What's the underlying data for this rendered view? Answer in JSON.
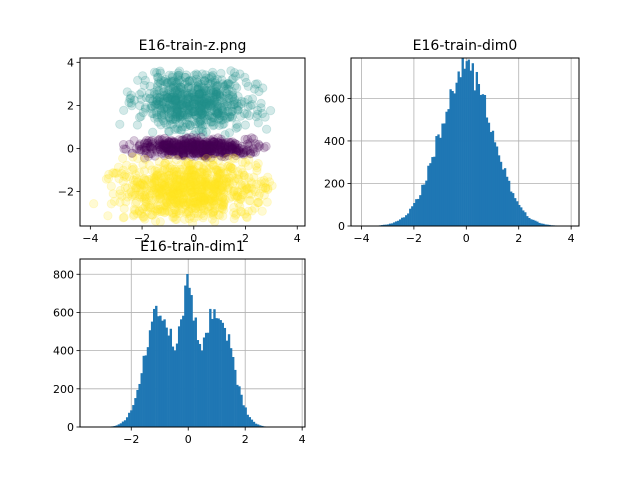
{
  "chart_data": [
    {
      "type": "scatter",
      "title": "E16-train-z.png",
      "xlim": [
        -4.4,
        4.3
      ],
      "ylim": [
        -3.6,
        4.2
      ],
      "xticks": [
        -4,
        -2,
        0,
        2,
        4
      ],
      "yticks": [
        -2,
        0,
        2,
        4
      ],
      "grid": false,
      "marker_alpha": 0.2,
      "series": [
        {
          "color": "#21918c",
          "x_range": [
            -3.4,
            3.3
          ],
          "y_range": [
            0.5,
            3.7
          ],
          "count": 650
        },
        {
          "color": "#440154",
          "x_range": [
            -3.5,
            3.5
          ],
          "y_range": [
            -0.45,
            0.55
          ],
          "count": 450
        },
        {
          "color": "#fde725",
          "x_range": [
            -4.2,
            4.0
          ],
          "y_range": [
            -3.5,
            -0.35
          ],
          "count": 850
        }
      ]
    },
    {
      "type": "histogram",
      "title": "E16-train-dim0",
      "xlim": [
        -4.4,
        4.3
      ],
      "ylim": [
        0,
        790
      ],
      "xticks": [
        -4,
        -2,
        0,
        2,
        4
      ],
      "yticks": [
        0,
        200,
        400,
        600
      ],
      "grid": true,
      "bar_color": "#1f77b4",
      "bin_start": -3.8,
      "bin_end": 3.9,
      "bins": 100,
      "components": [
        {
          "center": 0.0,
          "sigma": 1.0,
          "peak": 740
        }
      ]
    },
    {
      "type": "histogram",
      "title": "E16-train-dim1",
      "xlim": [
        -3.8,
        4.1
      ],
      "ylim": [
        0,
        880
      ],
      "xticks": [
        -2,
        0,
        2,
        4
      ],
      "yticks": [
        0,
        200,
        400,
        600,
        800
      ],
      "grid": true,
      "bar_color": "#1f77b4",
      "bin_start": -3.5,
      "bin_end": 3.8,
      "bins": 100,
      "components": [
        {
          "center": -1.0,
          "sigma": 0.52,
          "peak": 620
        },
        {
          "center": 0.0,
          "sigma": 0.22,
          "peak": 560
        },
        {
          "center": 1.0,
          "sigma": 0.52,
          "peak": 620
        }
      ]
    }
  ]
}
